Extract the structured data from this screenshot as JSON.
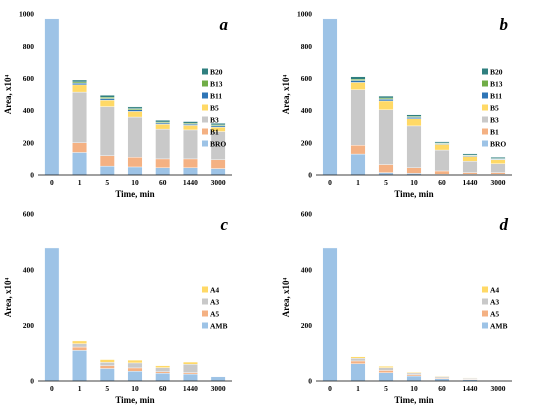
{
  "chart_data": [
    {
      "type": "bar",
      "stacked": true,
      "panel_label": "a",
      "categories": [
        "0",
        "1",
        "5",
        "10",
        "60",
        "1440",
        "3000"
      ],
      "xlabel": "Time, min",
      "ylabel": "Area, x10⁴",
      "ylim": [
        0,
        1000
      ],
      "yticks": [
        0,
        200,
        400,
        600,
        800,
        1000
      ],
      "legend_position": "right",
      "series": [
        {
          "name": "BRO",
          "color": "#9dc3e6",
          "values": [
            970,
            140,
            55,
            50,
            45,
            45,
            40
          ]
        },
        {
          "name": "B1",
          "color": "#f4b183",
          "values": [
            0,
            60,
            65,
            60,
            55,
            55,
            55
          ]
        },
        {
          "name": "B3",
          "color": "#c9c9c9",
          "values": [
            0,
            315,
            305,
            250,
            185,
            180,
            175
          ]
        },
        {
          "name": "B5",
          "color": "#ffd966",
          "values": [
            0,
            45,
            40,
            35,
            30,
            28,
            27
          ]
        },
        {
          "name": "B11",
          "color": "#2e75b6",
          "values": [
            0,
            10,
            10,
            10,
            8,
            8,
            8
          ]
        },
        {
          "name": "B13",
          "color": "#70ad47",
          "values": [
            0,
            8,
            8,
            7,
            6,
            6,
            6
          ]
        },
        {
          "name": "B20",
          "color": "#2f7f7f",
          "values": [
            0,
            12,
            12,
            11,
            11,
            10,
            10
          ]
        }
      ]
    },
    {
      "type": "bar",
      "stacked": true,
      "panel_label": "b",
      "categories": [
        "0",
        "1",
        "5",
        "10",
        "60",
        "1440",
        "3000"
      ],
      "xlabel": "Time, min",
      "ylabel": "Area, x10⁴",
      "ylim": [
        0,
        1000
      ],
      "yticks": [
        0,
        200,
        400,
        600,
        800,
        1000
      ],
      "legend_position": "right",
      "series": [
        {
          "name": "BRO",
          "color": "#9dc3e6",
          "values": [
            970,
            130,
            15,
            10,
            5,
            5,
            5
          ]
        },
        {
          "name": "B1",
          "color": "#f4b183",
          "values": [
            0,
            55,
            50,
            35,
            20,
            10,
            10
          ]
        },
        {
          "name": "B3",
          "color": "#c9c9c9",
          "values": [
            0,
            345,
            340,
            260,
            130,
            70,
            55
          ]
        },
        {
          "name": "B5",
          "color": "#ffd966",
          "values": [
            0,
            45,
            55,
            45,
            35,
            30,
            25
          ]
        },
        {
          "name": "B11",
          "color": "#2e75b6",
          "values": [
            0,
            12,
            10,
            8,
            5,
            5,
            4
          ]
        },
        {
          "name": "B13",
          "color": "#70ad47",
          "values": [
            0,
            8,
            8,
            6,
            4,
            4,
            3
          ]
        },
        {
          "name": "B20",
          "color": "#2f7f7f",
          "values": [
            0,
            15,
            12,
            10,
            8,
            8,
            8
          ]
        }
      ]
    },
    {
      "type": "bar",
      "stacked": true,
      "panel_label": "c",
      "categories": [
        "0",
        "1",
        "5",
        "10",
        "60",
        "1440",
        "3000"
      ],
      "xlabel": "Time, min",
      "ylabel": "Area, x10⁴",
      "ylim": [
        0,
        600
      ],
      "yticks": [
        0,
        200,
        400,
        600
      ],
      "legend_position": "right",
      "series": [
        {
          "name": "AMB",
          "color": "#9dc3e6",
          "values": [
            478,
            110,
            45,
            35,
            28,
            25,
            15
          ]
        },
        {
          "name": "A5",
          "color": "#f4b183",
          "values": [
            0,
            12,
            10,
            12,
            5,
            5,
            0
          ]
        },
        {
          "name": "A3",
          "color": "#c9c9c9",
          "values": [
            0,
            12,
            12,
            18,
            15,
            30,
            0
          ]
        },
        {
          "name": "A4",
          "color": "#ffd966",
          "values": [
            0,
            10,
            10,
            10,
            7,
            8,
            0
          ]
        }
      ]
    },
    {
      "type": "bar",
      "stacked": true,
      "panel_label": "d",
      "categories": [
        "0",
        "1",
        "5",
        "10",
        "60",
        "1440",
        "3000"
      ],
      "xlabel": "Time, min",
      "ylabel": "Area, x10⁴",
      "ylim": [
        0,
        600
      ],
      "yticks": [
        0,
        200,
        400,
        600
      ],
      "legend_position": "right",
      "series": [
        {
          "name": "AMB",
          "color": "#9dc3e6",
          "values": [
            478,
            62,
            30,
            18,
            8,
            5,
            2
          ]
        },
        {
          "name": "A5",
          "color": "#f4b183",
          "values": [
            0,
            10,
            8,
            5,
            3,
            2,
            0
          ]
        },
        {
          "name": "A3",
          "color": "#c9c9c9",
          "values": [
            0,
            10,
            10,
            6,
            5,
            3,
            1
          ]
        },
        {
          "name": "A4",
          "color": "#ffd966",
          "values": [
            0,
            5,
            5,
            3,
            2,
            1,
            0
          ]
        }
      ]
    }
  ]
}
